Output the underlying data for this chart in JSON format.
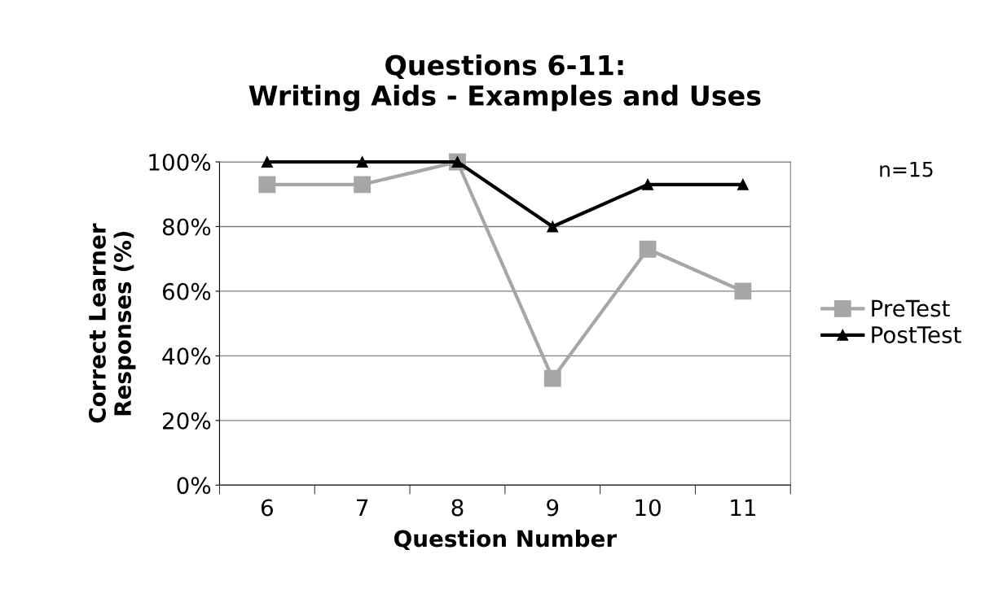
{
  "chart_data": {
    "type": "line",
    "title": "Questions 6-11:\nWriting Aids - Examples and Uses",
    "xlabel": "Question Number",
    "ylabel": "Correct Learner\nResponses (%)",
    "categories": [
      "6",
      "7",
      "8",
      "9",
      "10",
      "11"
    ],
    "series": [
      {
        "name": "PreTest",
        "color": "#a6a6a6",
        "marker": "square",
        "values": [
          93,
          93,
          100,
          33,
          73,
          60
        ]
      },
      {
        "name": "PostTest",
        "color": "#000000",
        "marker": "triangle",
        "values": [
          100,
          100,
          100,
          80,
          93,
          93
        ]
      }
    ],
    "ylim": [
      0,
      100
    ],
    "yticks": [
      {
        "value": 0,
        "label": "0%"
      },
      {
        "value": 20,
        "label": "20%"
      },
      {
        "value": 40,
        "label": "40%"
      },
      {
        "value": 60,
        "label": "60%"
      },
      {
        "value": 80,
        "label": "80%"
      },
      {
        "value": 100,
        "label": "100%"
      }
    ],
    "grid": "y",
    "legend": "right",
    "line_style": "solid",
    "annotations": [
      "n=15"
    ]
  }
}
